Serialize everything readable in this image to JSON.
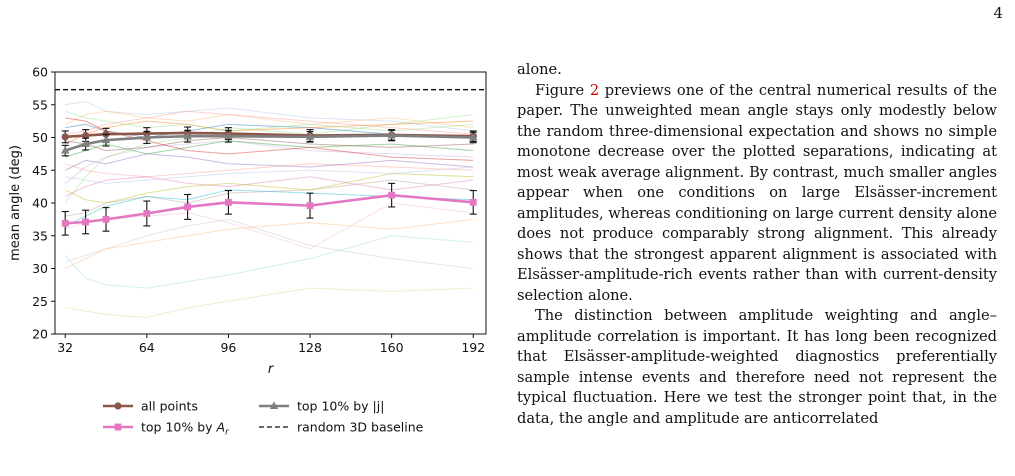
{
  "page": {
    "number": "4"
  },
  "body_text": {
    "p0": "alone.",
    "p1_start": "Figure ",
    "p1_ref": "2",
    "p1_rest": " previews one of the central numerical results of the paper. The unweighted mean angle stays only modestly below the random three-dimensional expectation and shows no simple monotone decrease over the plotted separations, indicating at most weak average alignment. By contrast, much smaller angles appear when one conditions on large Elsässer-increment amplitudes, whereas conditioning on large current density alone does not produce comparably strong alignment. This already shows that the strongest apparent alignment is associated with Elsässer-amplitude-rich events rather than with current-density selection alone.",
    "p2": "The distinction between amplitude weighting and angle–amplitude correlation is important. It has long been recognized that Elsässer-amplitude-weighted diagnostics preferentially sample intense events and therefore need not represent the typical fluctuation. Here we test the stronger point that, in the data, the angle and amplitude are anticorrelated"
  },
  "chart_data": {
    "type": "line",
    "xlabel": "r",
    "ylabel": "mean angle (deg)",
    "xlim": [
      28,
      197
    ],
    "ylim": [
      20,
      60
    ],
    "xticks": [
      32,
      64,
      96,
      128,
      160,
      192
    ],
    "yticks": [
      20,
      25,
      30,
      35,
      40,
      45,
      50,
      55,
      60
    ],
    "grid": false,
    "legend_position": "below-plot",
    "x": [
      32,
      40,
      48,
      64,
      80,
      96,
      128,
      160,
      192
    ],
    "series": [
      {
        "name": "all points",
        "color": "#8c564b",
        "marker": "circle",
        "values": [
          50.1,
          50.3,
          50.5,
          50.6,
          50.7,
          50.6,
          50.3,
          50.4,
          50.2
        ],
        "errors": [
          0.9,
          0.9,
          0.9,
          0.9,
          0.9,
          0.9,
          0.9,
          0.8,
          0.8
        ]
      },
      {
        "name": "top 10% by |j|",
        "color": "#7f7f7f",
        "marker": "triangle",
        "values": [
          48.0,
          49.0,
          49.6,
          50.0,
          50.2,
          50.2,
          50.1,
          50.3,
          50.0
        ],
        "errors": [
          0.8,
          0.9,
          0.9,
          0.9,
          0.9,
          0.9,
          0.8,
          0.8,
          0.8
        ]
      },
      {
        "name": "top 10% by A_r",
        "label_html": "top 10% by <tspan font-style='italic'>A</tspan><tspan font-style='italic' font-size='9' dy='3'>r</tspan>",
        "color": "#e377c2",
        "marker": "square",
        "values": [
          36.9,
          37.1,
          37.5,
          38.4,
          39.4,
          40.1,
          39.6,
          41.2,
          40.1
        ],
        "errors": [
          1.8,
          1.8,
          1.8,
          1.9,
          1.9,
          1.8,
          1.9,
          1.8,
          1.8
        ]
      }
    ],
    "baseline": {
      "name": "random 3D baseline",
      "value": 57.3,
      "color": "#111111",
      "style": "dashed"
    },
    "background_traces": [
      {
        "color": "#aec7e8",
        "values": [
          55.0,
          55.5,
          54.0,
          53.5,
          54.0,
          54.5,
          53.0,
          52.5,
          51.0
        ]
      },
      {
        "color": "#ffbb78",
        "values": [
          52.0,
          53.5,
          54.0,
          53.0,
          52.5,
          53.5,
          52.0,
          53.0,
          51.5
        ]
      },
      {
        "color": "#98df8a",
        "values": [
          40.0,
          44.0,
          47.0,
          49.0,
          50.0,
          51.5,
          50.5,
          52.0,
          53.5
        ]
      },
      {
        "color": "#ff9896",
        "values": [
          46.0,
          45.0,
          44.5,
          44.0,
          44.5,
          45.0,
          46.0,
          45.5,
          45.0
        ]
      },
      {
        "color": "#c5b0d5",
        "values": [
          43.0,
          45.5,
          47.0,
          48.5,
          49.0,
          49.5,
          48.0,
          47.5,
          47.0
        ]
      },
      {
        "color": "#c49c94",
        "values": [
          38.0,
          38.5,
          40.0,
          41.0,
          40.0,
          41.5,
          42.0,
          43.5,
          42.0
        ]
      },
      {
        "color": "#f7b6d2",
        "values": [
          36.0,
          37.0,
          37.5,
          38.0,
          38.5,
          37.0,
          33.0,
          40.0,
          38.5
        ]
      },
      {
        "color": "#dbdb8d",
        "values": [
          24.0,
          23.5,
          23.0,
          22.5,
          24.0,
          25.0,
          27.0,
          26.5,
          27.0
        ]
      },
      {
        "color": "#9edae5",
        "values": [
          32.0,
          28.5,
          27.5,
          27.0,
          28.0,
          29.0,
          31.5,
          35.0,
          34.0
        ]
      },
      {
        "color": "#c7c7c7",
        "values": [
          31.0,
          32.0,
          33.0,
          35.0,
          36.5,
          37.5,
          33.5,
          31.5,
          30.0
        ]
      },
      {
        "color": "#1f77b4",
        "values": [
          51.5,
          52.0,
          51.0,
          50.0,
          51.0,
          52.0,
          51.5,
          50.5,
          50.0
        ]
      },
      {
        "color": "#ff7f0e",
        "values": [
          49.0,
          50.5,
          51.5,
          52.5,
          52.0,
          51.0,
          51.5,
          52.0,
          52.5
        ]
      },
      {
        "color": "#2ca02c",
        "values": [
          47.0,
          48.0,
          49.0,
          47.5,
          48.5,
          49.5,
          48.5,
          49.0,
          48.0
        ]
      },
      {
        "color": "#d62728",
        "values": [
          53.0,
          52.5,
          51.0,
          49.5,
          48.0,
          47.5,
          48.5,
          47.0,
          46.5
        ]
      },
      {
        "color": "#9467bd",
        "values": [
          45.0,
          46.5,
          46.0,
          47.5,
          47.0,
          46.0,
          45.5,
          46.5,
          45.5
        ]
      },
      {
        "color": "#8c564b",
        "values": [
          49.5,
          49.0,
          48.0,
          48.5,
          49.5,
          50.0,
          49.0,
          48.5,
          49.0
        ]
      },
      {
        "color": "#e377c2",
        "values": [
          41.0,
          42.5,
          43.5,
          44.0,
          43.0,
          42.5,
          44.0,
          42.0,
          43.5
        ]
      },
      {
        "color": "#bcbd22",
        "values": [
          42.0,
          40.5,
          40.0,
          41.5,
          42.5,
          43.0,
          42.0,
          44.5,
          44.0
        ]
      },
      {
        "color": "#17becf",
        "values": [
          36.5,
          38.0,
          39.5,
          41.0,
          40.5,
          42.0,
          41.5,
          41.0,
          40.5
        ]
      },
      {
        "color": "#aec7e8",
        "values": [
          44.0,
          43.5,
          43.0,
          43.5,
          44.0,
          44.5,
          45.0,
          44.5,
          45.5
        ]
      },
      {
        "color": "#ffbb78",
        "values": [
          30.0,
          31.5,
          33.0,
          34.0,
          35.0,
          36.0,
          37.0,
          36.0,
          37.5
        ]
      },
      {
        "color": "#98df8a",
        "values": [
          54.0,
          53.0,
          52.5,
          51.5,
          52.0,
          51.0,
          52.0,
          51.0,
          52.0
        ]
      },
      {
        "color": "#ff9896",
        "values": [
          50.5,
          51.0,
          52.0,
          53.0,
          54.0,
          53.5,
          52.5,
          51.5,
          50.5
        ]
      }
    ]
  }
}
